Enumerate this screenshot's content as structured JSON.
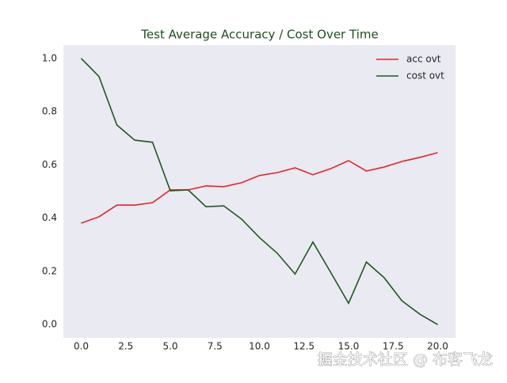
{
  "chart_data": {
    "type": "line",
    "title": "Test Average Accuracy / Cost Over Time",
    "x": [
      0,
      1,
      2,
      3,
      4,
      5,
      6,
      7,
      8,
      9,
      10,
      11,
      12,
      13,
      14,
      15,
      16,
      17,
      18,
      19,
      20
    ],
    "series": [
      {
        "name": "acc ovt",
        "color": "#e3262b",
        "values": [
          0.381,
          0.405,
          0.449,
          0.449,
          0.458,
          0.506,
          0.506,
          0.521,
          0.518,
          0.533,
          0.56,
          0.571,
          0.589,
          0.563,
          0.586,
          0.616,
          0.577,
          0.592,
          0.613,
          0.628,
          0.646
        ]
      },
      {
        "name": "cost ovt",
        "color": "#1d5a1d",
        "values": [
          1.0,
          0.932,
          0.75,
          0.693,
          0.685,
          0.503,
          0.506,
          0.443,
          0.446,
          0.396,
          0.327,
          0.268,
          0.19,
          0.31,
          0.196,
          0.08,
          0.235,
          0.176,
          0.089,
          0.039,
          0.0
        ]
      }
    ],
    "xlim": [
      -1,
      21
    ],
    "xticks": [
      {
        "value": 0,
        "label": "0.0"
      },
      2.5,
      {
        "value": 5,
        "label": "5.0"
      },
      7.5,
      {
        "value": 10,
        "label": "10.0"
      },
      12.5,
      {
        "value": 15,
        "label": "15.0"
      },
      17.5,
      {
        "value": 20,
        "label": "20.0"
      }
    ],
    "ylim": [
      -0.05,
      1.05
    ],
    "yticks": [
      {
        "value": 0,
        "label": "0.0"
      },
      0.2,
      0.4,
      0.6,
      0.8,
      {
        "value": 1,
        "label": "1.0"
      }
    ],
    "legend": "upper right",
    "background": "#eaeaf2",
    "watermark": "掘金技术社区 @ 布客飞龙"
  }
}
